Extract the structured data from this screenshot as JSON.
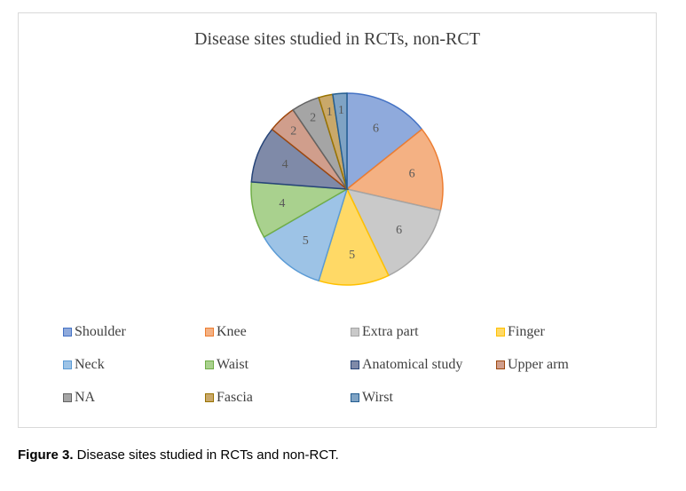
{
  "chart_data": {
    "type": "pie",
    "title": "Disease sites studied in RCTs, non-RCT",
    "categories": [
      "Shoulder",
      "Knee",
      "Extra part",
      "Finger",
      "Neck",
      "Waist",
      "Anatomical study",
      "Upper arm",
      "NA",
      "Fascia",
      "Wirst"
    ],
    "values": [
      6,
      6,
      6,
      5,
      5,
      4,
      4,
      2,
      2,
      1,
      1
    ],
    "colors": [
      "#8faadc",
      "#f4b183",
      "#c9c9c9",
      "#ffd966",
      "#9dc3e6",
      "#a9d18e",
      "#7f8aa8",
      "#d09e8c",
      "#a5a5a5",
      "#c9a86a",
      "#7fa3c4"
    ],
    "edge_colors": [
      "#4472c4",
      "#ed7d31",
      "#a5a5a5",
      "#ffc000",
      "#5b9bd5",
      "#70ad47",
      "#264478",
      "#9e480e",
      "#636363",
      "#997300",
      "#255e91"
    ],
    "legend_position": "bottom",
    "data_labels": true
  },
  "caption": {
    "label": "Figure 3.",
    "text": " Disease sites studied in RCTs and non-RCT."
  }
}
